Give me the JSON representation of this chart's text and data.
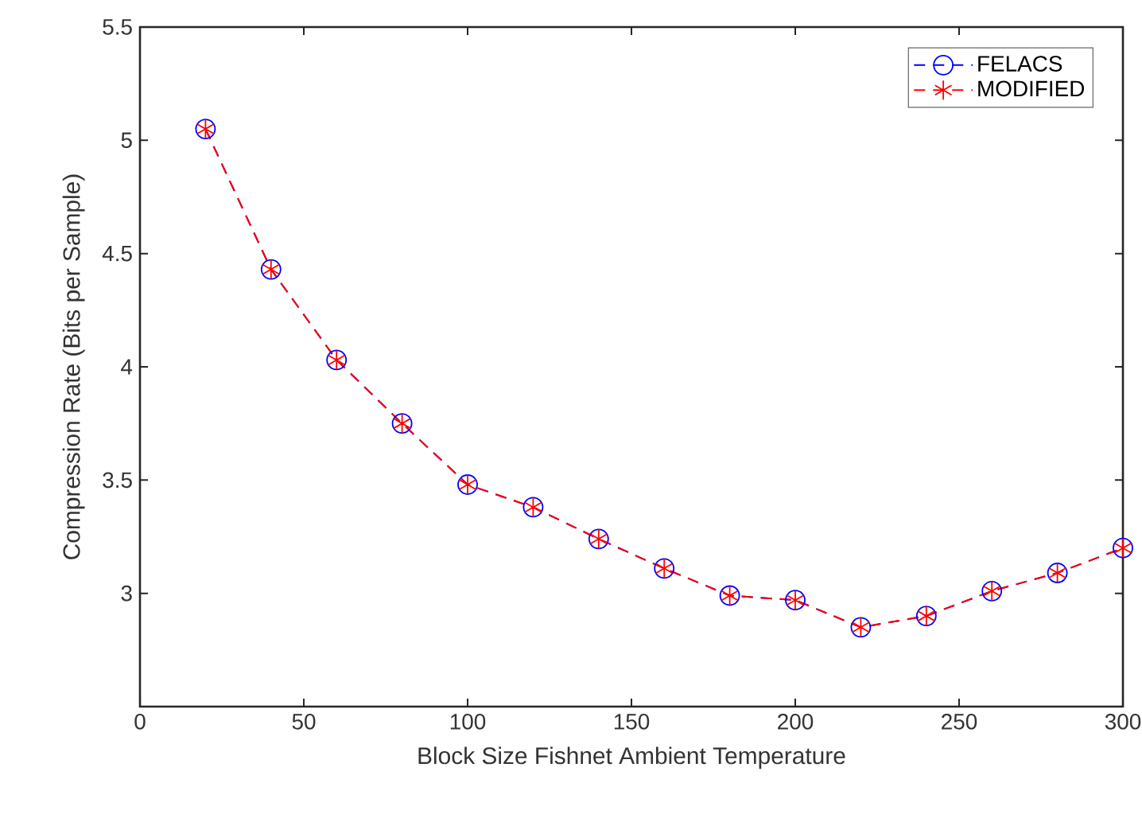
{
  "chart_data": {
    "type": "line",
    "xlabel": "Block Size Fishnet Ambient Temperature",
    "ylabel": "Compression Rate (Bits per Sample)",
    "x": [
      20,
      40,
      60,
      80,
      100,
      120,
      140,
      160,
      180,
      200,
      220,
      240,
      260,
      280,
      300
    ],
    "series": [
      {
        "name": "FELACS",
        "color": "#0000ff",
        "marker": "circle",
        "values": [
          5.05,
          4.43,
          4.03,
          3.75,
          3.48,
          3.38,
          3.24,
          3.11,
          2.99,
          2.97,
          2.85,
          2.9,
          3.01,
          3.09,
          3.2
        ]
      },
      {
        "name": "MODIFIED",
        "color": "#ff0000",
        "marker": "cross",
        "values": [
          5.05,
          4.43,
          4.03,
          3.75,
          3.48,
          3.38,
          3.24,
          3.11,
          2.99,
          2.97,
          2.85,
          2.9,
          3.01,
          3.09,
          3.2
        ]
      }
    ],
    "xlim": [
      0,
      300
    ],
    "xticks": [
      0,
      50,
      100,
      150,
      200,
      250,
      300
    ],
    "ylim": [
      2.5,
      5.5
    ],
    "yticks": [
      3,
      3.5,
      4,
      4.5,
      5,
      5.5
    ],
    "grid": false,
    "legend": "top right",
    "line_style": "dashed"
  }
}
